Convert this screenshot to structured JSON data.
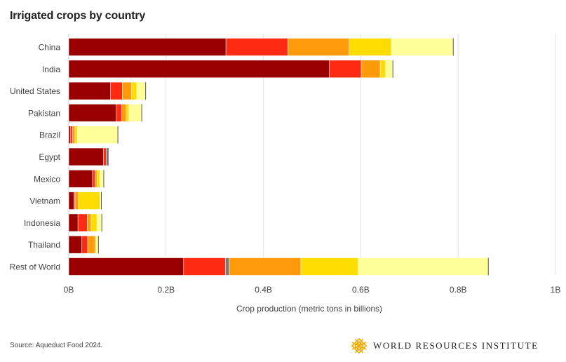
{
  "title": "Irrigated crops by country",
  "source": "Source: Aqueduct Food 2024.",
  "logo_text": "WORLD RESOURCES INSTITUTE",
  "chart_data": {
    "type": "bar",
    "orientation": "horizontal",
    "stacked": true,
    "title": "Irrigated crops by country",
    "xlabel": "Crop production (metric tons in billions)",
    "xlim": [
      0,
      1
    ],
    "x_ticks": [
      0,
      0.2,
      0.4,
      0.6,
      0.8,
      1
    ],
    "x_tick_labels": [
      "0B",
      "0.2B",
      "0.4B",
      "0.6B",
      "0.8B",
      "1B"
    ],
    "grid": true,
    "legend": "none",
    "categories": [
      "China",
      "India",
      "United States",
      "Pakistan",
      "Brazil",
      "Egypt",
      "Mexico",
      "Vietnam",
      "Indonesia",
      "Thailand",
      "Rest of World"
    ],
    "series": [
      {
        "color": "#990000",
        "values": [
          0.323,
          0.535,
          0.086,
          0.097,
          0.004,
          0.071,
          0.049,
          0.011,
          0.019,
          0.027,
          0.236
        ]
      },
      {
        "color": "#ff2a12",
        "values": [
          0.127,
          0.066,
          0.024,
          0.012,
          0.004,
          0.006,
          0.005,
          0.002,
          0.019,
          0.012,
          0.086
        ]
      },
      {
        "color": "#7a7a7a",
        "values": [
          0,
          0,
          0,
          0,
          0,
          0.004,
          0,
          0,
          0,
          0,
          0.008
        ]
      },
      {
        "color": "#ff9a0a",
        "values": [
          0.126,
          0.039,
          0.019,
          0.009,
          0.005,
          0,
          0.004,
          0.007,
          0.008,
          0.015,
          0.147
        ]
      },
      {
        "color": "#ffdd00",
        "values": [
          0.087,
          0.011,
          0.011,
          0.006,
          0.005,
          0,
          0.006,
          0.044,
          0.012,
          0.003,
          0.118
        ]
      },
      {
        "color": "#ffff99",
        "values": [
          0.127,
          0.015,
          0.018,
          0.026,
          0.083,
          0,
          0.008,
          0.003,
          0.01,
          0.004,
          0.267
        ]
      }
    ]
  }
}
